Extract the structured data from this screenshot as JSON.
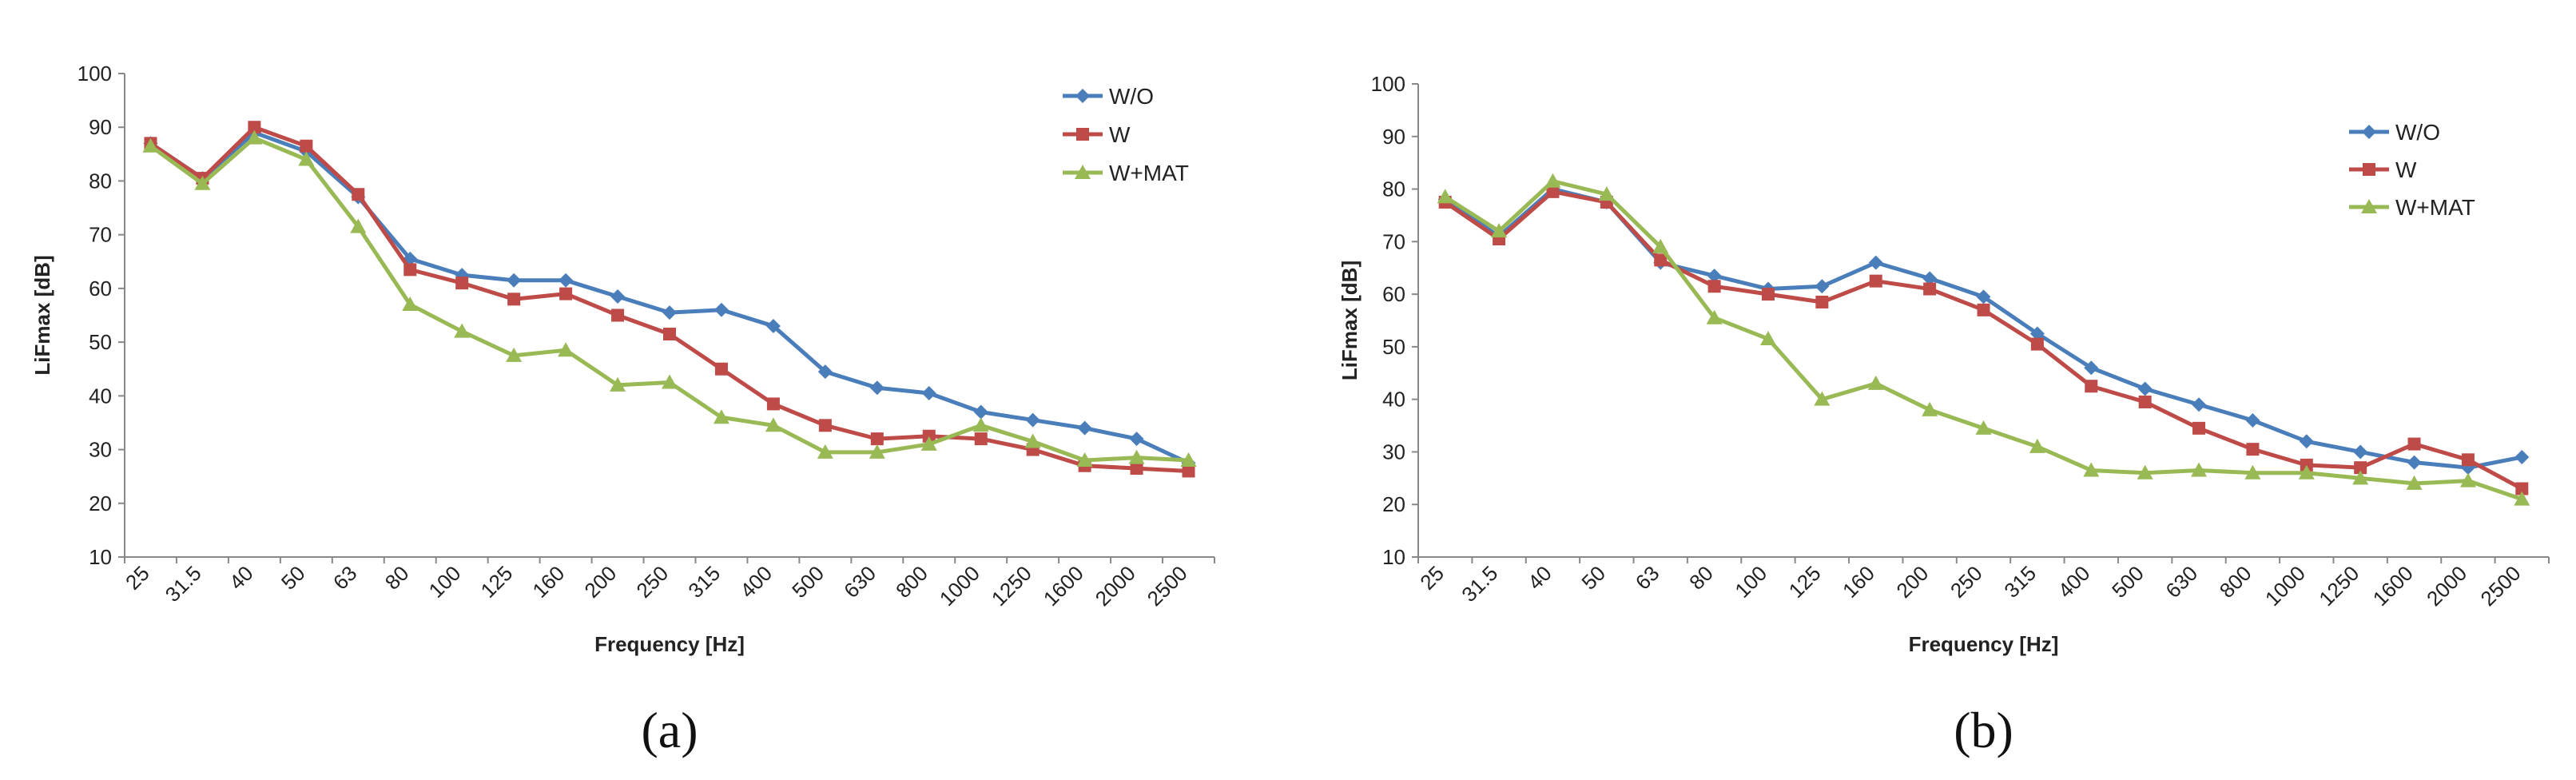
{
  "chart_data": [
    {
      "panel_label": "(a)",
      "type": "line",
      "xlabel": "Frequency [Hz]",
      "ylabel": "LiFmax [dB]",
      "ylim": [
        10,
        100
      ],
      "yticks": [
        10,
        20,
        30,
        40,
        50,
        60,
        70,
        80,
        90,
        100
      ],
      "categories": [
        "25",
        "31.5",
        "40",
        "50",
        "63",
        "80",
        "100",
        "125",
        "160",
        "200",
        "250",
        "315",
        "400",
        "500",
        "630",
        "800",
        "1000",
        "1250",
        "1600",
        "2000",
        "2500"
      ],
      "grid": false,
      "legend_position": "top-right",
      "series": [
        {
          "name": "W/O",
          "color": "#4a7ebb",
          "marker": "diamond",
          "values": [
            87,
            80.5,
            89,
            85.5,
            77,
            65.5,
            62.5,
            61.5,
            61.5,
            58.5,
            55.5,
            56,
            53,
            44.5,
            41.5,
            40.5,
            37,
            35.5,
            34,
            32,
            27.5
          ]
        },
        {
          "name": "W",
          "color": "#be4b48",
          "marker": "square",
          "values": [
            87,
            80.5,
            90,
            86.5,
            77.5,
            63.5,
            61,
            58,
            59,
            55,
            51.5,
            45,
            38.5,
            34.5,
            32,
            32.5,
            32,
            30,
            27,
            26.5,
            26
          ]
        },
        {
          "name": "W+MAT",
          "color": "#98b954",
          "marker": "triangle",
          "values": [
            86.5,
            79.5,
            88,
            84,
            71.5,
            57,
            52,
            47.5,
            48.5,
            42,
            42.5,
            36,
            34.5,
            29.5,
            29.5,
            31,
            34.5,
            31.5,
            28,
            28.5,
            28
          ]
        }
      ]
    },
    {
      "panel_label": "(b)",
      "type": "line",
      "xlabel": "Frequency [Hz]",
      "ylabel": "LiFmax [dB]",
      "ylim": [
        10,
        100
      ],
      "yticks": [
        10,
        20,
        30,
        40,
        50,
        60,
        70,
        80,
        90,
        100
      ],
      "categories": [
        "25",
        "31.5",
        "40",
        "50",
        "63",
        "80",
        "100",
        "125",
        "160",
        "200",
        "250",
        "315",
        "400",
        "500",
        "630",
        "800",
        "1000",
        "1250",
        "1600",
        "2000",
        "2500"
      ],
      "grid": false,
      "legend_position": "top-right",
      "series": [
        {
          "name": "W/O",
          "color": "#4a7ebb",
          "marker": "diamond",
          "values": [
            78,
            71,
            80,
            77.5,
            66,
            63.5,
            61,
            61.5,
            66,
            63,
            59.5,
            52.5,
            46,
            42,
            39,
            36,
            32,
            30,
            28,
            27,
            29
          ]
        },
        {
          "name": "W",
          "color": "#be4b48",
          "marker": "square",
          "values": [
            77.5,
            70.5,
            79.5,
            77.5,
            66.5,
            61.5,
            60,
            58.5,
            62.5,
            61,
            57,
            50.5,
            42.5,
            39.5,
            34.5,
            30.5,
            27.5,
            27,
            31.5,
            28.5,
            23
          ]
        },
        {
          "name": "W+MAT",
          "color": "#98b954",
          "marker": "triangle",
          "values": [
            78.5,
            72,
            81.5,
            79,
            69,
            55.5,
            51.5,
            40,
            43,
            38,
            34.5,
            31,
            26.5,
            26,
            26.5,
            26,
            26,
            25,
            24,
            24.5,
            21
          ]
        }
      ]
    }
  ]
}
